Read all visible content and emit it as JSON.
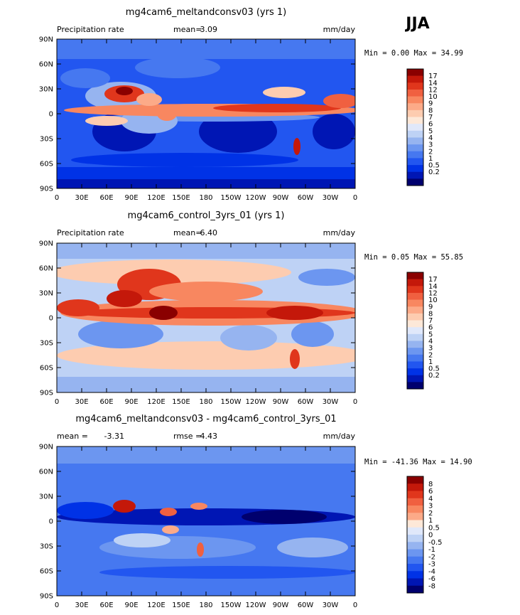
{
  "season": "JJA",
  "colors": {
    "prcp": [
      "#00006e",
      "#0016b4",
      "#0032e6",
      "#2256f0",
      "#4678f0",
      "#6c96f0",
      "#96b4f0",
      "#bed2f5",
      "#e0e8fa",
      "#fde8d8",
      "#fdccb0",
      "#fcaa88",
      "#f88760",
      "#f06040",
      "#e0361c",
      "#c4180a",
      "#8a0000"
    ],
    "diff": [
      "#00006e",
      "#0016b4",
      "#0032e6",
      "#2256f0",
      "#4678f0",
      "#6c96f0",
      "#96b4f0",
      "#bed2f5",
      "#e0e8fa",
      "#fde8d8",
      "#fcaa88",
      "#f88760",
      "#f06040",
      "#e0361c",
      "#c4180a",
      "#8a0000"
    ]
  },
  "panels": [
    {
      "title": "mg4cam6_meltandconsv03 (yrs 1)",
      "left_label": "Precipitation rate",
      "stat_label": "mean=",
      "stat_value": "3.09",
      "stat2_label": "",
      "stat2_value": "",
      "units": "mm/day",
      "minmax": "Min =   0.00 Max =  34.99",
      "cbar_labels": [
        "17",
        "14",
        "12",
        "10",
        "9",
        "8",
        "7",
        "6",
        "5",
        "4",
        "3",
        "2",
        "1",
        "0.5",
        "0.2"
      ]
    },
    {
      "title": "mg4cam6_control_3yrs_01 (yrs 1)",
      "left_label": "Precipitation rate",
      "stat_label": "mean=",
      "stat_value": "6.40",
      "stat2_label": "",
      "stat2_value": "",
      "units": "mm/day",
      "minmax": "Min =   0.05 Max =  55.85",
      "cbar_labels": [
        "17",
        "14",
        "12",
        "10",
        "9",
        "8",
        "7",
        "6",
        "5",
        "4",
        "3",
        "2",
        "1",
        "0.5",
        "0.2"
      ]
    },
    {
      "title": "mg4cam6_meltandconsv03 - mg4cam6_control_3yrs_01",
      "left_label": "",
      "stat_label": "mean =",
      "stat_value": "-3.31",
      "stat2_label": "rmse =",
      "stat2_value": "4.43",
      "units": "mm/day",
      "minmax": "Min = -41.36 Max =  14.90",
      "cbar_labels": [
        "8",
        "6",
        "4",
        "3",
        "2",
        "1",
        "0.5",
        "0",
        "-0.5",
        "-1",
        "-2",
        "-3",
        "-4",
        "-6",
        "-8"
      ]
    }
  ],
  "axes": {
    "lat_ticks": [
      "90N",
      "60N",
      "30N",
      "0",
      "30S",
      "60S",
      "90S"
    ],
    "lon_ticks": [
      "0",
      "30E",
      "60E",
      "90E",
      "120E",
      "150E",
      "180",
      "150W",
      "120W",
      "90W",
      "60W",
      "30W",
      "0"
    ]
  },
  "chart_data": [
    {
      "type": "heatmap",
      "title": "mg4cam6_meltandconsv03 (yrs 1)",
      "variable": "Precipitation rate",
      "units": "mm/day",
      "mean": 3.09,
      "min": 0.0,
      "max": 34.99,
      "contour_levels": [
        0.2,
        0.5,
        1,
        2,
        3,
        4,
        5,
        6,
        7,
        8,
        9,
        10,
        12,
        14,
        17
      ],
      "x_range": [
        "0",
        "0"
      ],
      "y_range": [
        "90S",
        "90N"
      ]
    },
    {
      "type": "heatmap",
      "title": "mg4cam6_control_3yrs_01 (yrs 1)",
      "variable": "Precipitation rate",
      "units": "mm/day",
      "mean": 6.4,
      "min": 0.05,
      "max": 55.85,
      "contour_levels": [
        0.2,
        0.5,
        1,
        2,
        3,
        4,
        5,
        6,
        7,
        8,
        9,
        10,
        12,
        14,
        17
      ],
      "x_range": [
        "0",
        "0"
      ],
      "y_range": [
        "90S",
        "90N"
      ]
    },
    {
      "type": "heatmap",
      "title": "mg4cam6_meltandconsv03 - mg4cam6_control_3yrs_01",
      "units": "mm/day",
      "mean": -3.31,
      "rmse": 4.43,
      "min": -41.36,
      "max": 14.9,
      "contour_levels": [
        -8,
        -6,
        -4,
        -3,
        -2,
        -1,
        -0.5,
        0,
        0.5,
        1,
        2,
        3,
        4,
        6,
        8
      ],
      "x_range": [
        "0",
        "0"
      ],
      "y_range": [
        "90S",
        "90N"
      ]
    }
  ]
}
